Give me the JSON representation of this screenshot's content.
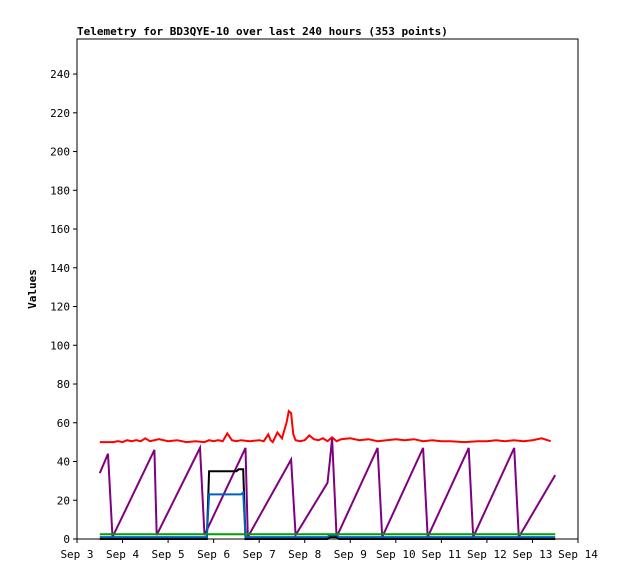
{
  "chart_data": {
    "type": "line",
    "title": "Telemetry for BD3QYE-10 over last 240 hours (353 points)",
    "xlabel": "",
    "ylabel": "Values",
    "xlim": [
      3.0,
      14.0
    ],
    "ylim": [
      0,
      255
    ],
    "x_ticks": [
      {
        "value": 3,
        "label": "Sep 3"
      },
      {
        "value": 4,
        "label": "Sep 4"
      },
      {
        "value": 5,
        "label": "Sep 5"
      },
      {
        "value": 6,
        "label": "Sep 6"
      },
      {
        "value": 7,
        "label": "Sep 7"
      },
      {
        "value": 8,
        "label": "Sep 8"
      },
      {
        "value": 9,
        "label": "Sep 9"
      },
      {
        "value": 10,
        "label": "Sep 10"
      },
      {
        "value": 11,
        "label": "Sep 11"
      },
      {
        "value": 12,
        "label": "Sep 12"
      },
      {
        "value": 13,
        "label": "Sep 13"
      },
      {
        "value": 14,
        "label": "Sep 14"
      }
    ],
    "y_ticks": [
      0,
      20,
      40,
      60,
      80,
      100,
      120,
      140,
      160,
      180,
      200,
      220,
      240
    ],
    "grid": false,
    "legend": "none",
    "series": [
      {
        "color": "#ff0000",
        "x": [
          3.5,
          3.8,
          3.9,
          4.0,
          4.1,
          4.2,
          4.3,
          4.4,
          4.5,
          4.6,
          4.8,
          5.0,
          5.2,
          5.4,
          5.6,
          5.8,
          5.9,
          6.0,
          6.1,
          6.2,
          6.3,
          6.4,
          6.5,
          6.6,
          6.8,
          7.0,
          7.1,
          7.2,
          7.25,
          7.3,
          7.4,
          7.5,
          7.6,
          7.65,
          7.7,
          7.75,
          7.8,
          7.9,
          8.0,
          8.1,
          8.2,
          8.3,
          8.4,
          8.5,
          8.6,
          8.7,
          8.8,
          9.0,
          9.2,
          9.4,
          9.6,
          9.8,
          10.0,
          10.2,
          10.4,
          10.6,
          10.8,
          11.0,
          11.2,
          11.5,
          11.8,
          12.0,
          12.2,
          12.4,
          12.6,
          12.8,
          13.0,
          13.2,
          13.4
        ],
        "values": [
          50,
          50,
          50.5,
          50,
          51,
          50.5,
          51,
          50.5,
          52,
          50.5,
          51.5,
          50.5,
          51,
          50,
          50.5,
          50,
          51,
          50.5,
          51,
          50.5,
          54.5,
          51,
          50.5,
          51,
          50.5,
          51,
          50.5,
          54,
          51,
          50,
          55,
          52,
          60,
          66,
          65,
          54,
          51,
          50.5,
          51,
          53.5,
          51.5,
          51,
          52,
          50.5,
          52.5,
          50.5,
          51.5,
          52,
          51,
          51.5,
          50.5,
          51,
          51.5,
          51,
          51.5,
          50.5,
          51,
          50.5,
          50.5,
          50,
          50.5,
          50.5,
          51,
          50.5,
          51,
          50.5,
          51,
          52,
          50.5
        ]
      },
      {
        "color": "#800080",
        "x": [
          3.5,
          3.68,
          3.78,
          4.7,
          4.75,
          5.7,
          5.8,
          6.7,
          6.75,
          7.7,
          7.8,
          8.5,
          8.55,
          8.6,
          8.7,
          9.6,
          9.7,
          10.6,
          10.7,
          11.6,
          11.7,
          12.6,
          12.7,
          13.5
        ],
        "values": [
          34,
          44,
          1,
          46,
          2,
          47,
          2,
          47,
          1,
          41,
          2,
          29,
          40,
          52,
          1,
          47,
          1,
          47,
          1,
          47,
          1,
          47,
          1,
          33
        ]
      },
      {
        "color": "#000000",
        "x": [
          3.5,
          5.75,
          5.85,
          5.9,
          6.5,
          6.55,
          6.65,
          6.7,
          7.0,
          8.5,
          8.55,
          8.7,
          8.75,
          13.5
        ],
        "values": [
          0,
          0,
          0,
          35,
          35,
          36,
          36,
          0,
          0,
          0,
          1,
          1,
          0,
          0
        ]
      },
      {
        "color": "#0060c0",
        "x": [
          3.5,
          5.75,
          5.85,
          5.9,
          6.6,
          6.65,
          6.7,
          8.5,
          8.55,
          8.7,
          8.75,
          13.5
        ],
        "values": [
          1,
          1,
          1,
          23,
          23,
          24,
          1,
          1,
          2,
          2,
          1,
          1
        ]
      },
      {
        "color": "#00a000",
        "x": [
          3.5,
          13.5
        ],
        "values": [
          2.5,
          2.5
        ]
      }
    ]
  }
}
